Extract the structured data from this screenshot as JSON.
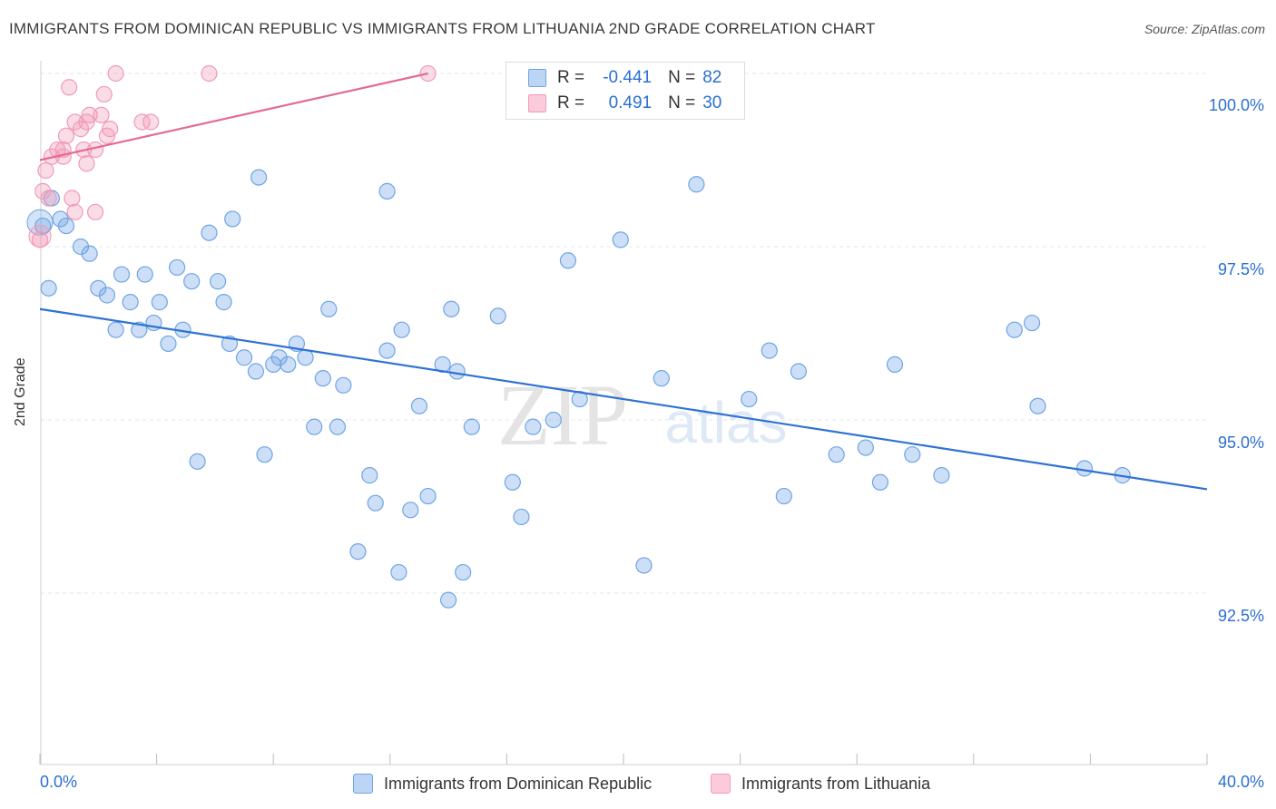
{
  "title": "IMMIGRANTS FROM DOMINICAN REPUBLIC VS IMMIGRANTS FROM LITHUANIA 2ND GRADE CORRELATION CHART",
  "source": "Source: ZipAtlas.com",
  "watermark": {
    "zip": "ZIP",
    "atlas": "atlas"
  },
  "legend": {
    "rows": [
      {
        "r_label": "R =",
        "r_value": "-0.441",
        "n_label": "N =",
        "n_value": "82"
      },
      {
        "r_label": "R =",
        "r_value": "0.491",
        "n_label": "N =",
        "n_value": "30"
      }
    ]
  },
  "chart_data": {
    "type": "scatter",
    "title": "IMMIGRANTS FROM DOMINICAN REPUBLIC VS IMMIGRANTS FROM LITHUANIA 2ND GRADE CORRELATION CHART",
    "xlabel": "",
    "ylabel": "2nd Grade",
    "xlim": [
      0,
      40
    ],
    "ylim": [
      90.0,
      100.5
    ],
    "x_tick_labels": [
      "0.0%",
      "40.0%"
    ],
    "y_ticks": [
      92.5,
      95.0,
      97.5,
      100.0
    ],
    "y_tick_labels": [
      "92.5%",
      "95.0%",
      "97.5%",
      "100.0%"
    ],
    "grid": true,
    "legend_position": "bottom",
    "colors": {
      "blue": "#6fa4e6",
      "blue_line": "#2e72d2",
      "pink": "#f19ab7",
      "pink_line": "#e46b93"
    },
    "series": [
      {
        "name": "Immigrants from Dominican Republic",
        "color": "#6fa4e6",
        "trend": {
          "x": [
            0,
            40
          ],
          "y": [
            96.6,
            94.0
          ]
        },
        "points": [
          [
            0.1,
            97.8
          ],
          [
            0.4,
            98.2
          ],
          [
            0.7,
            97.9
          ],
          [
            0.9,
            97.8
          ],
          [
            1.4,
            97.5
          ],
          [
            1.7,
            97.4
          ],
          [
            2.0,
            96.9
          ],
          [
            2.3,
            96.8
          ],
          [
            2.6,
            96.3
          ],
          [
            2.8,
            97.1
          ],
          [
            3.1,
            96.7
          ],
          [
            3.4,
            96.3
          ],
          [
            3.6,
            97.1
          ],
          [
            3.9,
            96.4
          ],
          [
            4.1,
            96.7
          ],
          [
            4.4,
            96.1
          ],
          [
            4.7,
            97.2
          ],
          [
            4.9,
            96.3
          ],
          [
            5.2,
            97.0
          ],
          [
            5.4,
            94.4
          ],
          [
            5.8,
            97.7
          ],
          [
            6.1,
            97.0
          ],
          [
            6.3,
            96.7
          ],
          [
            6.5,
            96.1
          ],
          [
            6.6,
            97.9
          ],
          [
            7.0,
            95.9
          ],
          [
            7.4,
            95.7
          ],
          [
            7.5,
            98.5
          ],
          [
            7.7,
            94.5
          ],
          [
            8.0,
            95.8
          ],
          [
            8.2,
            95.9
          ],
          [
            8.5,
            95.8
          ],
          [
            8.8,
            96.1
          ],
          [
            9.1,
            95.9
          ],
          [
            9.4,
            94.9
          ],
          [
            9.7,
            95.6
          ],
          [
            9.9,
            96.6
          ],
          [
            10.2,
            94.9
          ],
          [
            10.4,
            95.5
          ],
          [
            10.9,
            93.1
          ],
          [
            11.3,
            94.2
          ],
          [
            11.5,
            93.8
          ],
          [
            11.9,
            96.0
          ],
          [
            11.9,
            98.3
          ],
          [
            12.3,
            92.8
          ],
          [
            12.4,
            96.3
          ],
          [
            12.7,
            93.7
          ],
          [
            13.0,
            95.2
          ],
          [
            13.3,
            93.9
          ],
          [
            13.8,
            95.8
          ],
          [
            14.0,
            92.4
          ],
          [
            14.3,
            95.7
          ],
          [
            14.1,
            96.6
          ],
          [
            14.5,
            92.8
          ],
          [
            14.8,
            94.9
          ],
          [
            15.7,
            96.5
          ],
          [
            16.2,
            94.1
          ],
          [
            16.5,
            93.6
          ],
          [
            16.9,
            94.9
          ],
          [
            17.6,
            95.0
          ],
          [
            18.1,
            97.3
          ],
          [
            18.5,
            95.3
          ],
          [
            19.9,
            97.6
          ],
          [
            20.7,
            92.9
          ],
          [
            21.3,
            95.6
          ],
          [
            22.5,
            98.4
          ],
          [
            24.3,
            95.3
          ],
          [
            25.0,
            96.0
          ],
          [
            25.5,
            93.9
          ],
          [
            26.0,
            95.7
          ],
          [
            27.3,
            94.5
          ],
          [
            28.3,
            94.6
          ],
          [
            28.8,
            94.1
          ],
          [
            29.3,
            95.8
          ],
          [
            29.9,
            94.5
          ],
          [
            30.9,
            94.2
          ],
          [
            33.4,
            96.3
          ],
          [
            34.0,
            96.4
          ],
          [
            34.2,
            95.2
          ],
          [
            35.8,
            94.3
          ],
          [
            37.1,
            94.2
          ],
          [
            0.3,
            96.9
          ]
        ]
      },
      {
        "name": "Immigrants from Lithuania",
        "color": "#f19ab7",
        "trend": {
          "x": [
            0,
            13.3
          ],
          "y": [
            98.75,
            100.0
          ]
        },
        "points": [
          [
            0.0,
            97.6
          ],
          [
            0.1,
            98.3
          ],
          [
            0.2,
            98.6
          ],
          [
            0.3,
            98.2
          ],
          [
            0.4,
            98.8
          ],
          [
            0.6,
            98.9
          ],
          [
            0.8,
            98.9
          ],
          [
            0.8,
            98.8
          ],
          [
            0.9,
            99.1
          ],
          [
            1.0,
            99.8
          ],
          [
            1.1,
            98.2
          ],
          [
            1.2,
            99.3
          ],
          [
            1.2,
            98.0
          ],
          [
            1.4,
            99.2
          ],
          [
            1.5,
            98.9
          ],
          [
            1.6,
            99.3
          ],
          [
            1.6,
            98.7
          ],
          [
            1.7,
            99.4
          ],
          [
            1.9,
            98.9
          ],
          [
            1.9,
            98.0
          ],
          [
            2.1,
            99.4
          ],
          [
            2.2,
            99.7
          ],
          [
            2.3,
            99.1
          ],
          [
            2.4,
            99.2
          ],
          [
            2.6,
            100.0
          ],
          [
            3.5,
            99.3
          ],
          [
            3.8,
            99.3
          ],
          [
            5.8,
            100.0
          ],
          [
            13.3,
            100.0
          ],
          [
            18.6,
            100.0
          ]
        ]
      }
    ]
  },
  "bottom_legend": [
    {
      "label": "Immigrants from Dominican Republic"
    },
    {
      "label": "Immigrants from Lithuania"
    }
  ]
}
